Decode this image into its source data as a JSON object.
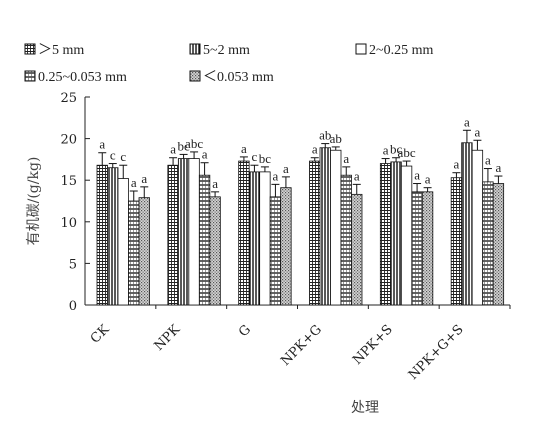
{
  "chart_data": {
    "type": "bar",
    "xlabel": "处理",
    "ylabel": "有机碳/(g/kg)",
    "ylim": [
      0,
      25
    ],
    "yticks": [
      0,
      5,
      10,
      15,
      20,
      25
    ],
    "categories": [
      "CK",
      "NPK",
      "G",
      "NPK+G",
      "NPK+S",
      "NPK+G+S"
    ],
    "series": [
      {
        "name": ">5 mm",
        "pattern": "grid",
        "values": [
          16.8,
          16.8,
          17.3,
          17.3,
          17.0,
          15.3
        ],
        "errors": [
          1.5,
          0.9,
          0.5,
          0.4,
          0.6,
          0.6
        ],
        "sig": [
          "a",
          "a",
          "a",
          "a",
          "a",
          "a"
        ]
      },
      {
        "name": "5~2 mm",
        "pattern": "vlines",
        "values": [
          16.5,
          17.6,
          16.0,
          18.9,
          17.2,
          19.5
        ],
        "errors": [
          0.5,
          0.5,
          0.8,
          0.5,
          0.5,
          1.5
        ],
        "sig": [
          "c",
          "bc",
          "c",
          "ab",
          "bc",
          "a"
        ]
      },
      {
        "name": "2~0.25 mm",
        "pattern": "white",
        "values": [
          15.2,
          17.6,
          16.0,
          18.6,
          16.7,
          18.6
        ],
        "errors": [
          1.6,
          0.8,
          0.6,
          0.4,
          0.6,
          1.2
        ],
        "sig": [
          "c",
          "abc",
          "bc",
          "ab",
          "abc",
          "a"
        ]
      },
      {
        "name": "0.25~0.053 mm",
        "pattern": "hgrid",
        "values": [
          12.5,
          15.6,
          13.0,
          15.6,
          13.6,
          14.8
        ],
        "errors": [
          1.2,
          1.5,
          1.5,
          1.0,
          1.0,
          1.6
        ],
        "sig": [
          "a",
          "a",
          "a",
          "a",
          "a",
          "a"
        ]
      },
      {
        "name": "<0.053 mm",
        "pattern": "dots",
        "values": [
          12.9,
          13.0,
          14.1,
          13.3,
          13.6,
          14.6
        ],
        "errors": [
          1.3,
          0.6,
          1.3,
          1.2,
          0.5,
          0.9
        ],
        "sig": [
          "a",
          "a",
          "a",
          "a",
          "a",
          "a"
        ]
      }
    ],
    "legend": {
      "position": "top",
      "labels": [
        "＞5 mm",
        "5~2 mm",
        "2~0.25 mm",
        "0.25~0.053 mm",
        "＜0.053 mm"
      ]
    },
    "grid": false
  }
}
